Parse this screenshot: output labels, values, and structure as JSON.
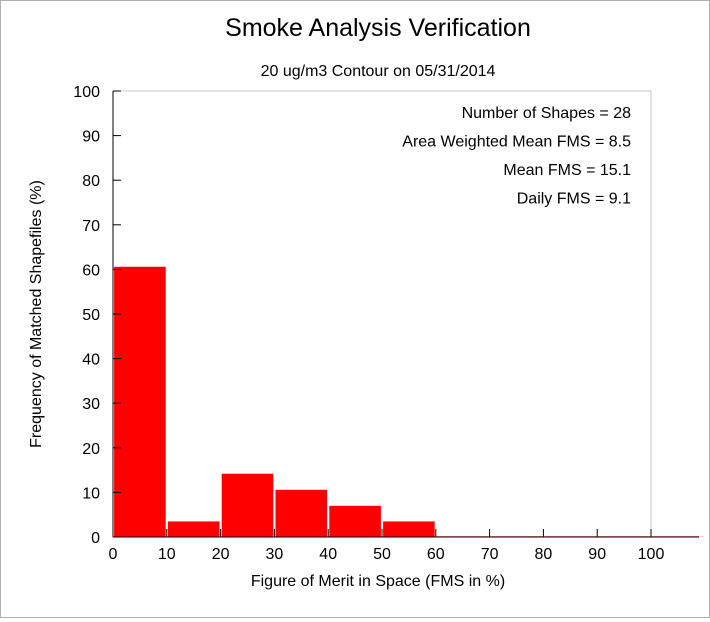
{
  "chart_data": {
    "type": "bar",
    "title": "Smoke Analysis Verification",
    "subtitle": "20 ug/m3 Contour on 05/31/2014",
    "xlabel": "Figure of Merit in Space (FMS in %)",
    "ylabel": "Frequency of Matched Shapefiles (%)",
    "xlim": [
      0,
      110
    ],
    "ylim": [
      0,
      100
    ],
    "xticks": [
      0,
      10,
      20,
      30,
      40,
      50,
      60,
      70,
      80,
      90,
      100
    ],
    "yticks": [
      0,
      10,
      20,
      30,
      40,
      50,
      60,
      70,
      80,
      90,
      100
    ],
    "bin_edges": [
      0,
      10,
      20,
      30,
      40,
      50,
      60,
      70,
      80,
      90,
      100,
      110
    ],
    "values": [
      60.7,
      3.6,
      14.3,
      10.7,
      7.1,
      3.6,
      0,
      0,
      0,
      0,
      0
    ],
    "bar_color": "#ff0000",
    "grid": false,
    "annotations": [
      "Number of Shapes = 28",
      "Area Weighted Mean FMS = 8.5",
      "Mean FMS = 15.1",
      "Daily FMS = 9.1"
    ]
  }
}
